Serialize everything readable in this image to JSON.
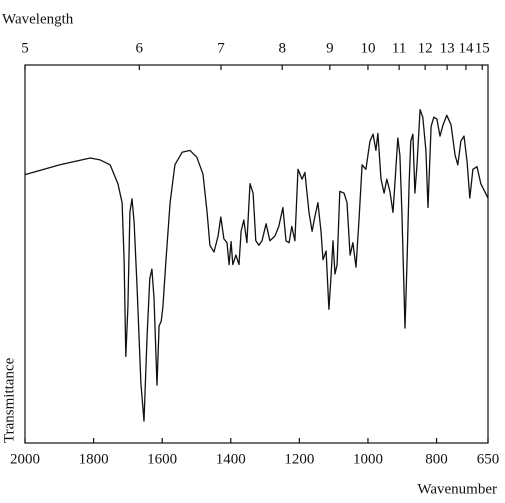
{
  "chart_data": {
    "type": "line",
    "x_label": "Wavenumber",
    "x2_label": "Wavelength",
    "y_label": "Transmittance",
    "xlim": [
      2000,
      650
    ],
    "ylim": [
      0,
      100
    ],
    "xticks": [
      2000,
      1800,
      1600,
      1400,
      1200,
      1000,
      800,
      650
    ],
    "x2ticks": [
      {
        "value": 2000,
        "label": "5"
      },
      {
        "value": 1666.7,
        "label": "6"
      },
      {
        "value": 1428.6,
        "label": "7"
      },
      {
        "value": 1250,
        "label": "8"
      },
      {
        "value": 1111.1,
        "label": "9"
      },
      {
        "value": 1000,
        "label": "10"
      },
      {
        "value": 909.1,
        "label": "11"
      },
      {
        "value": 833.3,
        "label": "12"
      },
      {
        "value": 769.2,
        "label": "13"
      },
      {
        "value": 714.3,
        "label": "14"
      },
      {
        "value": 666.7,
        "label": "15"
      }
    ],
    "color": "#111111",
    "x": [
      2000,
      1898,
      1810,
      1781,
      1752,
      1729,
      1717,
      1711,
      1706,
      1700,
      1694,
      1688,
      1682,
      1673,
      1662,
      1653,
      1644,
      1636,
      1630,
      1624,
      1615,
      1609,
      1603,
      1598,
      1589,
      1577,
      1563,
      1542,
      1519,
      1499,
      1481,
      1469,
      1461,
      1449,
      1437,
      1429,
      1420,
      1411,
      1405,
      1399,
      1394,
      1385,
      1376,
      1370,
      1362,
      1353,
      1344,
      1335,
      1327,
      1318,
      1309,
      1297,
      1286,
      1271,
      1260,
      1248,
      1239,
      1230,
      1222,
      1213,
      1204,
      1192,
      1184,
      1172,
      1163,
      1155,
      1146,
      1137,
      1131,
      1122,
      1114,
      1108,
      1102,
      1096,
      1090,
      1082,
      1070,
      1061,
      1052,
      1044,
      1035,
      1026,
      1017,
      1006,
      994,
      985,
      977,
      971,
      962,
      953,
      945,
      936,
      927,
      918,
      913,
      907,
      901,
      892,
      886,
      880,
      875,
      869,
      863,
      857,
      848,
      840,
      831,
      825,
      816,
      808,
      799,
      790,
      781,
      770,
      758,
      746,
      738,
      729,
      720,
      711,
      703,
      694,
      682,
      671,
      650
    ],
    "values": [
      71,
      73.6,
      75.4,
      74.9,
      73.6,
      68.6,
      63.6,
      48.5,
      22.9,
      35.9,
      61,
      64.6,
      58.5,
      41,
      15.8,
      5.8,
      28.4,
      43.5,
      46,
      38.4,
      15.3,
      31,
      32.2,
      36,
      48.5,
      63.6,
      73.6,
      76.9,
      77.4,
      75.6,
      71.1,
      61,
      52.3,
      50.5,
      54.8,
      59.8,
      54,
      53,
      47.2,
      53.3,
      47.2,
      49.7,
      47.2,
      56,
      59,
      53,
      68.6,
      66.1,
      53.5,
      52.3,
      53.5,
      58,
      53.5,
      54.8,
      57.3,
      62.3,
      53.5,
      53,
      57.3,
      53.5,
      72.4,
      69.8,
      71.6,
      61,
      56,
      59.8,
      63.6,
      56,
      48.5,
      50.8,
      35.4,
      43.5,
      53.5,
      44.7,
      47.2,
      66.6,
      66.1,
      63.6,
      49.7,
      53,
      46.5,
      59,
      73.6,
      72.4,
      79.9,
      81.7,
      77.4,
      81.9,
      69.8,
      66.1,
      69.8,
      66.6,
      61,
      73.6,
      80.7,
      76.1,
      61,
      30.4,
      48.5,
      68.6,
      79.9,
      81.7,
      66.1,
      73.6,
      88.2,
      86.2,
      77.4,
      62.3,
      83.7,
      86.2,
      85.7,
      81.2,
      84.2,
      86.7,
      84.2,
      76.1,
      73.6,
      79.9,
      81.2,
      74.4,
      64.8,
      72.4,
      73.1,
      68.6,
      64.8
    ]
  }
}
